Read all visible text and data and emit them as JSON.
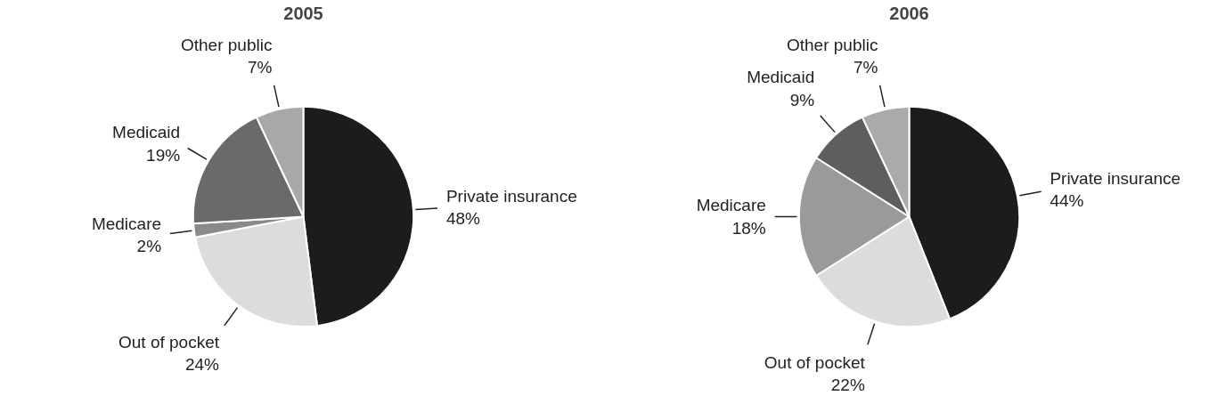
{
  "chart_data": [
    {
      "type": "pie",
      "title": "2005",
      "categories": [
        "Private insurance",
        "Out of pocket",
        "Medicare",
        "Medicaid",
        "Other public"
      ],
      "values": [
        48,
        24,
        2,
        19,
        7
      ],
      "value_labels": [
        "48%",
        "24%",
        "2%",
        "19%",
        "7%"
      ],
      "colors": [
        "#1c1c1c",
        "#dcdcdc",
        "#8a8a8a",
        "#6a6a6a",
        "#a8a8a8"
      ]
    },
    {
      "type": "pie",
      "title": "2006",
      "categories": [
        "Private insurance",
        "Out of pocket",
        "Medicare",
        "Medicaid",
        "Other public"
      ],
      "values": [
        44,
        22,
        18,
        9,
        7
      ],
      "value_labels": [
        "44%",
        "22%",
        "18%",
        "9%",
        "7%"
      ],
      "colors": [
        "#1c1c1c",
        "#dcdcdc",
        "#9a9a9a",
        "#5e5e5e",
        "#aaaaaa"
      ]
    }
  ]
}
